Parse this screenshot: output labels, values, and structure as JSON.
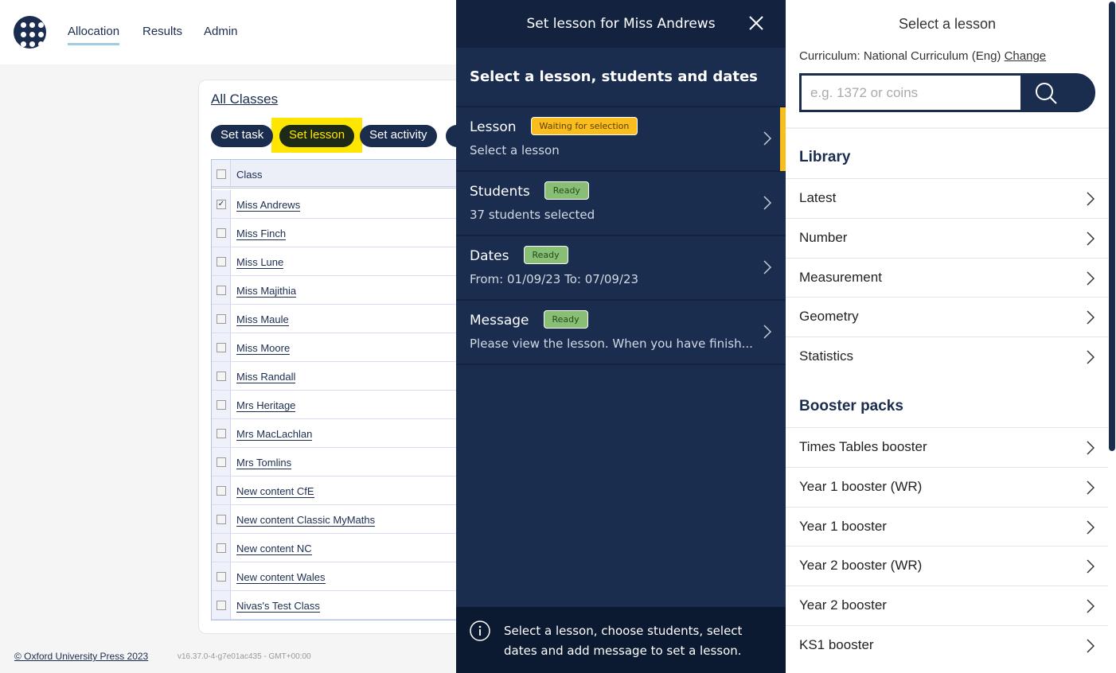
{
  "nav": {
    "items": [
      "Allocation",
      "Results",
      "Admin"
    ],
    "active": "Allocation"
  },
  "classes": {
    "title": "All Classes",
    "actions": [
      "Set task",
      "Set lesson",
      "Set activity"
    ],
    "column": "Class",
    "rows": [
      {
        "name": "Miss Andrews",
        "checked": true
      },
      {
        "name": "Miss Finch"
      },
      {
        "name": "Miss Lune"
      },
      {
        "name": "Miss Majithia"
      },
      {
        "name": "Miss Maule"
      },
      {
        "name": "Miss Moore"
      },
      {
        "name": "Miss Randall"
      },
      {
        "name": "Mrs Heritage"
      },
      {
        "name": "Mrs MacLachlan"
      },
      {
        "name": "Mrs Tomlins"
      },
      {
        "name": "New content CfE"
      },
      {
        "name": "New content Classic MyMaths"
      },
      {
        "name": "New content NC"
      },
      {
        "name": "New content Wales"
      },
      {
        "name": "Nivas's Test Class"
      }
    ]
  },
  "footer": {
    "copyright": "© Oxford University Press 2023",
    "version": "v16.37.0-4-g7e01ac435 - GMT+00:00"
  },
  "modal": {
    "title": "Set lesson for Miss Andrews",
    "subtitle": "Select a lesson, students and dates",
    "steps": [
      {
        "title": "Lesson",
        "badge": "Waiting for selection",
        "status": "waiting",
        "summary": "Select a lesson"
      },
      {
        "title": "Students",
        "badge": "Ready",
        "status": "ready",
        "summary": "37 students selected"
      },
      {
        "title": "Dates",
        "badge": "Ready",
        "status": "ready",
        "summary": "From: 01/09/23 To: 07/09/23"
      },
      {
        "title": "Message",
        "badge": "Ready",
        "status": "ready",
        "summary": "Please view the lesson. When you have finish..."
      }
    ],
    "info": "Select a lesson, choose students, select dates and add message to set a lesson."
  },
  "panel": {
    "title": "Select a lesson",
    "curriculum_label": "Curriculum: National Curriculum (Eng)",
    "change": "Change",
    "search_placeholder": "e.g. 1372 or coins",
    "library_title": "Library",
    "library": [
      "Latest",
      "Number",
      "Measurement",
      "Geometry",
      "Statistics"
    ],
    "booster_title": "Booster packs",
    "boosters": [
      "Times Tables booster",
      "Year 1 booster (WR)",
      "Year 1 booster",
      "Year 2 booster (WR)",
      "Year 2 booster",
      "KS1 booster"
    ]
  },
  "colors": {
    "navy": "#1b2d4f",
    "warning": "#fbbd1e",
    "ready": "#88bf74",
    "highlight": "#ffe600"
  }
}
